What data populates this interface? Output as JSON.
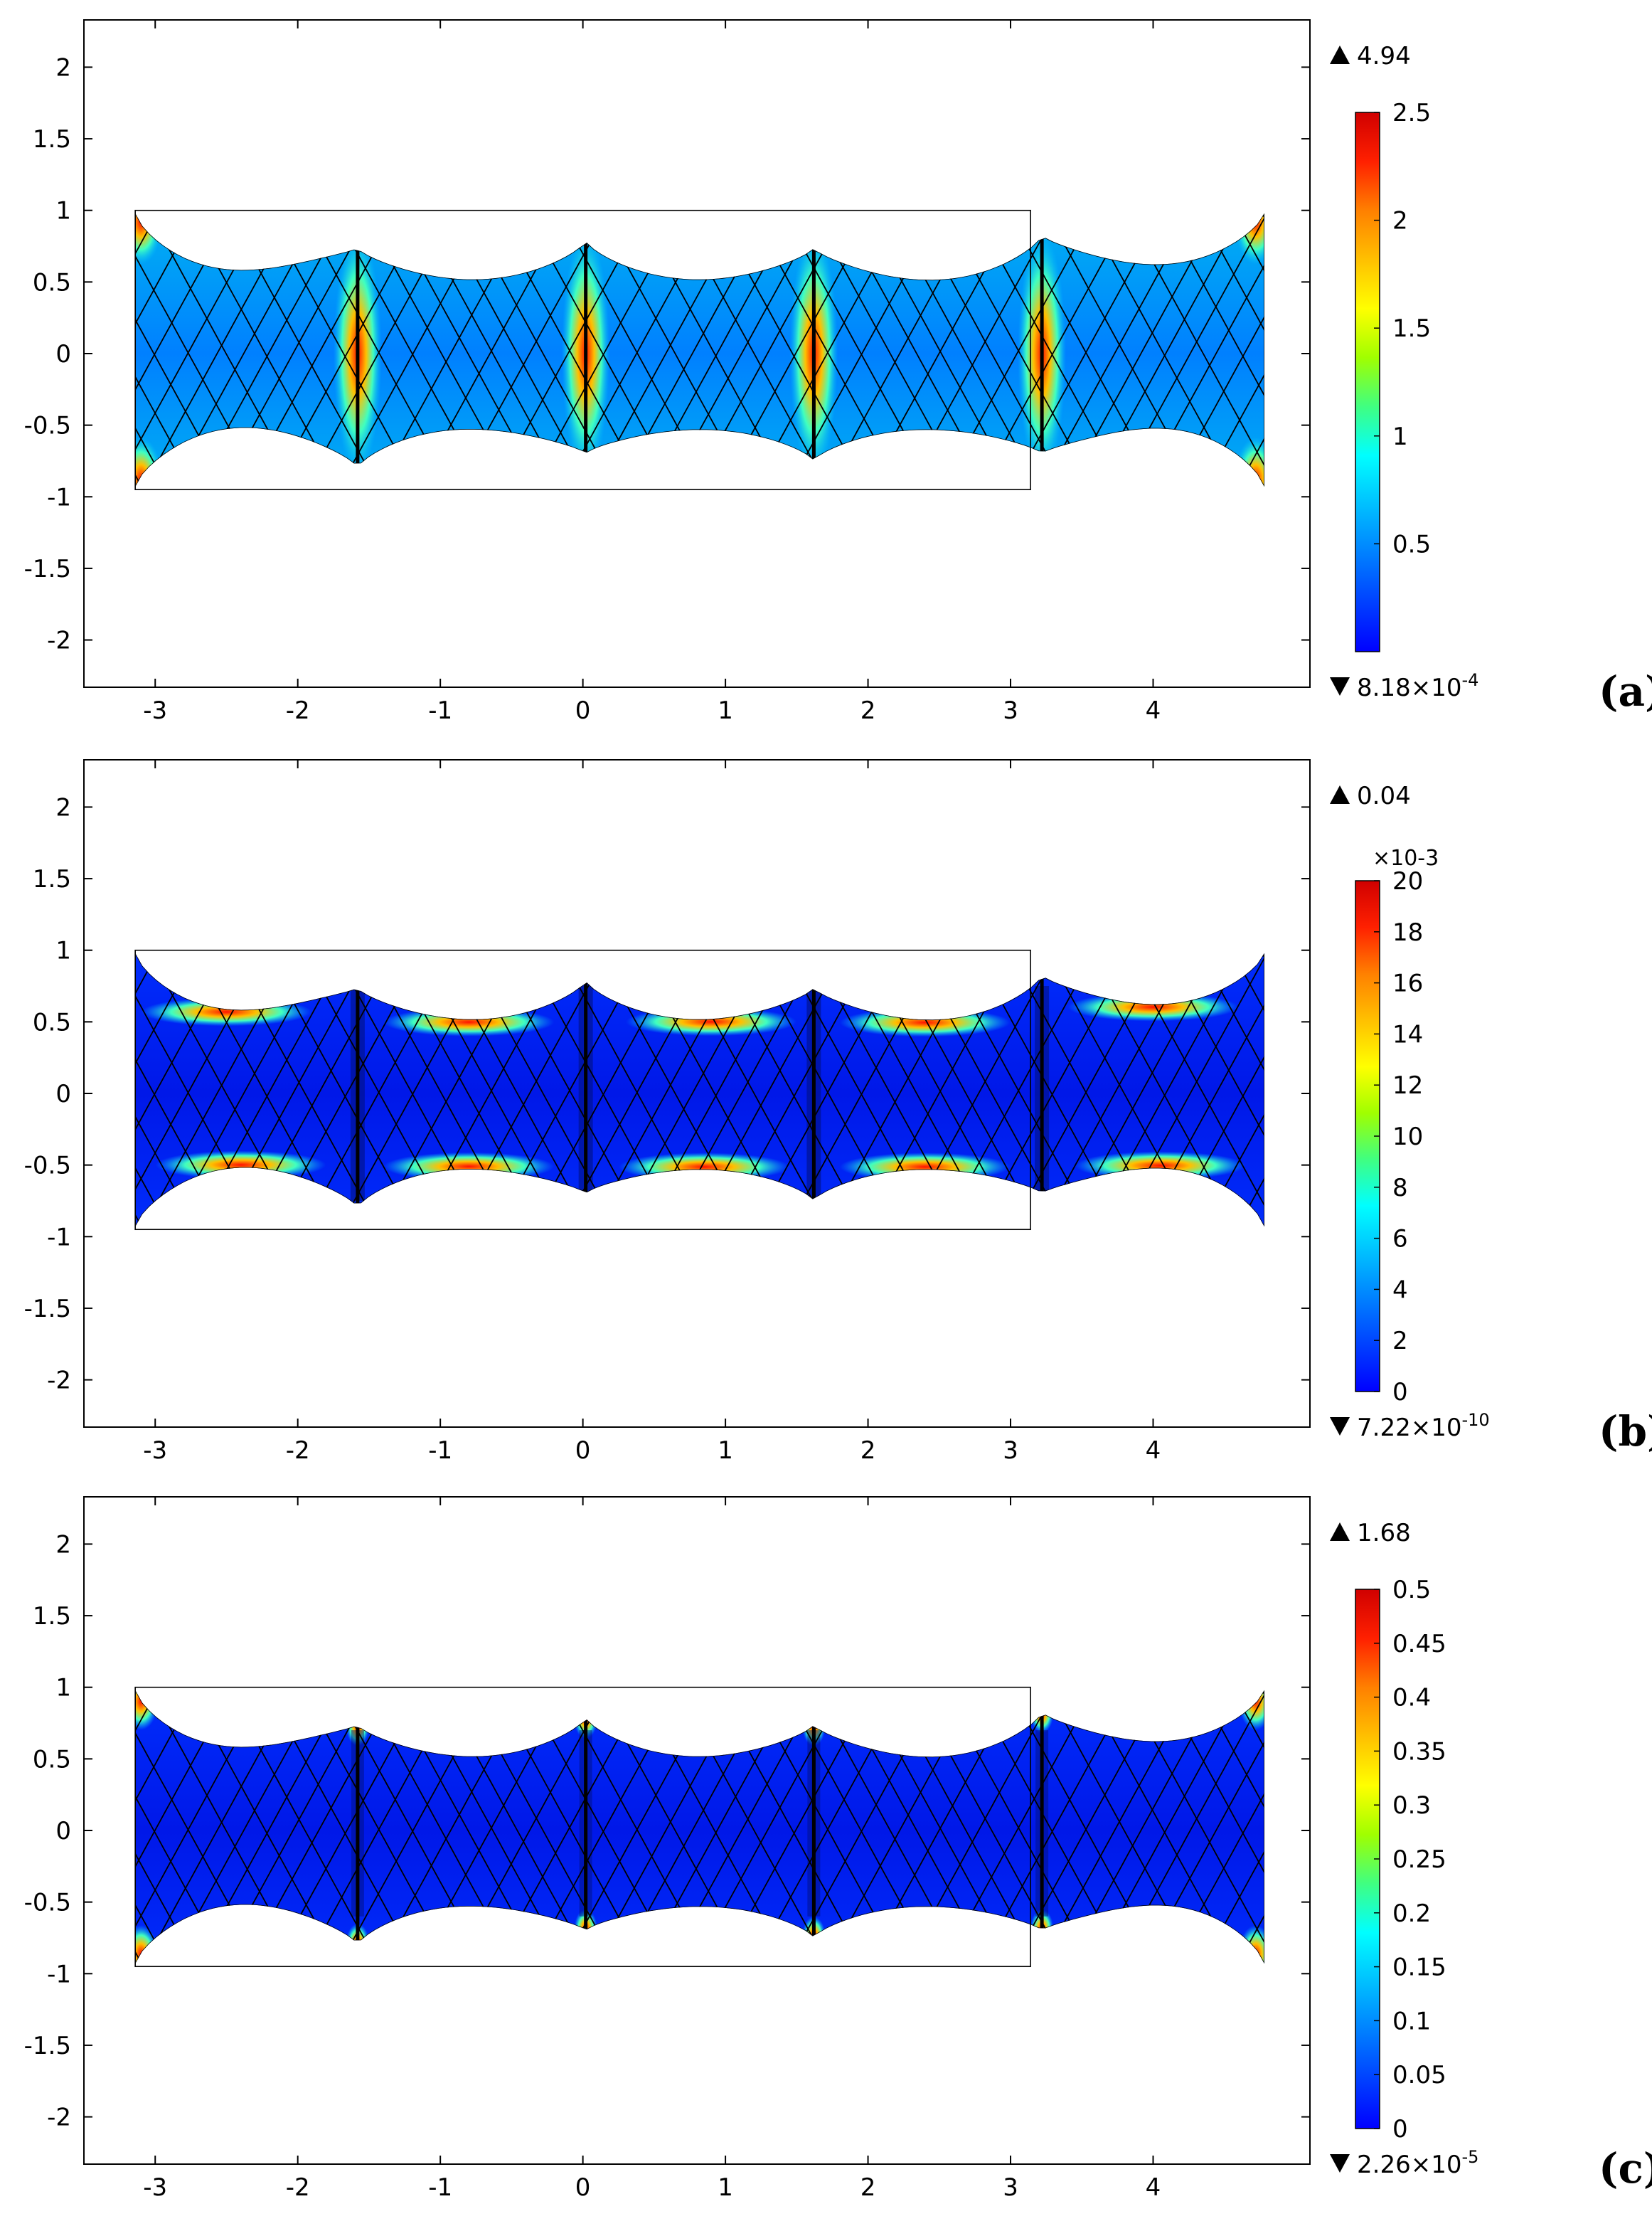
{
  "colors": {
    "colormap": [
      "#0000ff",
      "#0040ff",
      "#0080ff",
      "#00c0ff",
      "#00ffff",
      "#40ff80",
      "#a0ff00",
      "#ffff00",
      "#ffc000",
      "#ff8000",
      "#ff2000",
      "#d00000"
    ],
    "mesh": "#000000",
    "frame": "#000000"
  },
  "chart_data": [
    {
      "panel": "(a)",
      "type": "heatmap",
      "xlim": [
        -3.5,
        5.1
      ],
      "ylim": [
        -2.33,
        2.33
      ],
      "xticks": [
        "-3",
        "-2",
        "-1",
        "0",
        "1",
        "2",
        "3",
        "4"
      ],
      "yticks": [
        "2",
        "1.5",
        "1",
        "0.5",
        "0",
        "-0.5",
        "-1",
        "-1.5",
        "-2"
      ],
      "undeformed_rect": {
        "x": [
          -3.14,
          3.14
        ],
        "y": [
          -0.95,
          1.0
        ]
      },
      "vertical_creases_x": [
        -1.58,
        0.02,
        1.62,
        3.22
      ],
      "colorbar": {
        "min": 0,
        "max": 2.5,
        "ticks": [
          "2.5",
          "2",
          "1.5",
          "1",
          "0.5"
        ],
        "exponent": ""
      },
      "max_label": "4.94",
      "min_label_mantissa": "8.18×10",
      "min_label_exponent": "-4",
      "hotspot_pattern": "creases"
    },
    {
      "panel": "(b)",
      "type": "heatmap",
      "xlim": [
        -3.5,
        5.1
      ],
      "ylim": [
        -2.33,
        2.33
      ],
      "xticks": [
        "-3",
        "-2",
        "-1",
        "0",
        "1",
        "2",
        "3",
        "4"
      ],
      "yticks": [
        "2",
        "1.5",
        "1",
        "0.5",
        "0",
        "-0.5",
        "-1",
        "-1.5",
        "-2"
      ],
      "undeformed_rect": {
        "x": [
          -3.14,
          3.14
        ],
        "y": [
          -0.95,
          1.0
        ]
      },
      "vertical_creases_x": [
        -1.58,
        0.02,
        1.62,
        3.22
      ],
      "colorbar": {
        "min": 0,
        "max": 20,
        "ticks": [
          "20",
          "18",
          "16",
          "14",
          "12",
          "10",
          "8",
          "6",
          "4",
          "2",
          "0"
        ],
        "exponent": "×10-3"
      },
      "max_label": "0.04",
      "min_label_mantissa": "7.22×10",
      "min_label_exponent": "-10",
      "hotspot_pattern": "edges"
    },
    {
      "panel": "(c)",
      "type": "heatmap",
      "xlim": [
        -3.5,
        5.1
      ],
      "ylim": [
        -2.33,
        2.33
      ],
      "xticks": [
        "-3",
        "-2",
        "-1",
        "0",
        "1",
        "2",
        "3",
        "4"
      ],
      "yticks": [
        "2",
        "1.5",
        "1",
        "0.5",
        "0",
        "-0.5",
        "-1",
        "-1.5",
        "-2"
      ],
      "undeformed_rect": {
        "x": [
          -3.14,
          3.14
        ],
        "y": [
          -0.95,
          1.0
        ]
      },
      "vertical_creases_x": [
        -1.58,
        0.02,
        1.62,
        3.22
      ],
      "colorbar": {
        "min": 0,
        "max": 0.5,
        "ticks": [
          "0.5",
          "0.45",
          "0.4",
          "0.35",
          "0.3",
          "0.25",
          "0.2",
          "0.15",
          "0.1",
          "0.05",
          "0"
        ],
        "exponent": ""
      },
      "max_label": "1.68",
      "min_label_mantissa": "2.26×10",
      "min_label_exponent": "-5",
      "hotspot_pattern": "tips"
    }
  ]
}
